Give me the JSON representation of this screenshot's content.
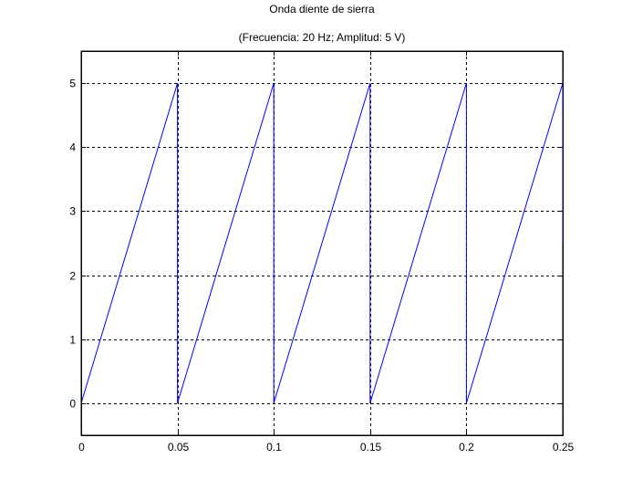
{
  "chart_data": {
    "type": "line",
    "title": "Onda diente de sierra",
    "subtitle": "(Frecuencia: 20 Hz; Amplitud:  5 V)",
    "xlabel": "",
    "ylabel": "",
    "xlim": [
      0,
      0.25
    ],
    "ylim": [
      -0.5,
      5.5
    ],
    "xticks": [
      0,
      0.05,
      0.1,
      0.15,
      0.2,
      0.25
    ],
    "xtick_labels": [
      "0",
      "0.05",
      "0.1",
      "0.15",
      "0.2",
      "0.25"
    ],
    "yticks": [
      0,
      1,
      2,
      3,
      4,
      5
    ],
    "ytick_labels": [
      "0",
      "1",
      "2",
      "3",
      "4",
      "5"
    ],
    "grid": true,
    "line_color": "#0000ff",
    "series": [
      {
        "x": [
          0,
          0.05,
          0.05,
          0.1,
          0.1,
          0.1,
          0.15,
          0.15,
          0.2,
          0.2,
          0.25,
          0.25
        ],
        "y": [
          0,
          5,
          0,
          5,
          2.5,
          0,
          5,
          0,
          5,
          0,
          5,
          2.5
        ]
      }
    ]
  }
}
